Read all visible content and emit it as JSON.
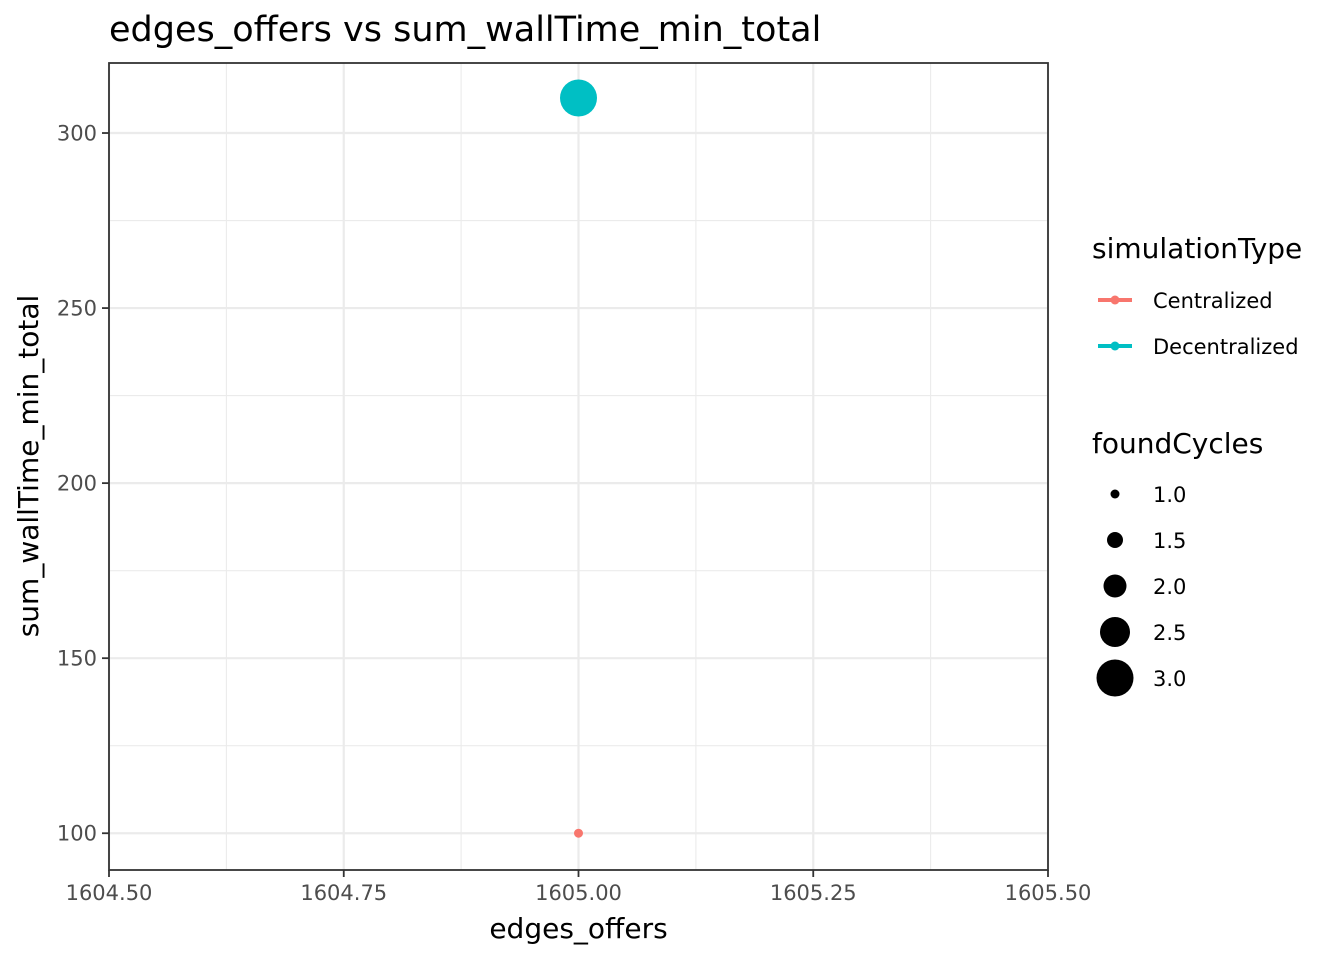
{
  "chart_data": {
    "type": "scatter",
    "title": "edges_offers  vs  sum_wallTime_min_total",
    "xlabel": "edges_offers",
    "ylabel": "sum_wallTime_min_total",
    "xlim": [
      1604.5,
      1605.5
    ],
    "ylim": [
      89.5,
      320
    ],
    "x_ticks": [
      {
        "value": 1604.5,
        "label": "1604.50"
      },
      {
        "value": 1604.75,
        "label": "1604.75"
      },
      {
        "value": 1605.0,
        "label": "1605.00"
      },
      {
        "value": 1605.25,
        "label": "1605.25"
      },
      {
        "value": 1605.5,
        "label": "1605.50"
      }
    ],
    "x_minor": [
      1604.625,
      1604.875,
      1605.125,
      1605.375
    ],
    "y_ticks": [
      {
        "value": 100,
        "label": "100"
      },
      {
        "value": 150,
        "label": "150"
      },
      {
        "value": 200,
        "label": "200"
      },
      {
        "value": 250,
        "label": "250"
      },
      {
        "value": 300,
        "label": "300"
      }
    ],
    "y_minor": [
      125,
      175,
      225,
      275
    ],
    "grid": true,
    "series": [
      {
        "name": "Centralized",
        "color": "#F8766D",
        "points": [
          {
            "x": 1605.0,
            "y": 100,
            "foundCycles": 1.0
          }
        ]
      },
      {
        "name": "Decentralized",
        "color": "#00BFC4",
        "points": [
          {
            "x": 1605.0,
            "y": 310,
            "foundCycles": 3.0
          }
        ]
      }
    ],
    "legend": {
      "placement": "right",
      "color_title": "simulationType",
      "size_title": "foundCycles",
      "size_entries": [
        {
          "value": 1.0,
          "label": "1.0"
        },
        {
          "value": 1.5,
          "label": "1.5"
        },
        {
          "value": 2.0,
          "label": "2.0"
        },
        {
          "value": 2.5,
          "label": "2.5"
        },
        {
          "value": 3.0,
          "label": "3.0"
        }
      ]
    }
  }
}
